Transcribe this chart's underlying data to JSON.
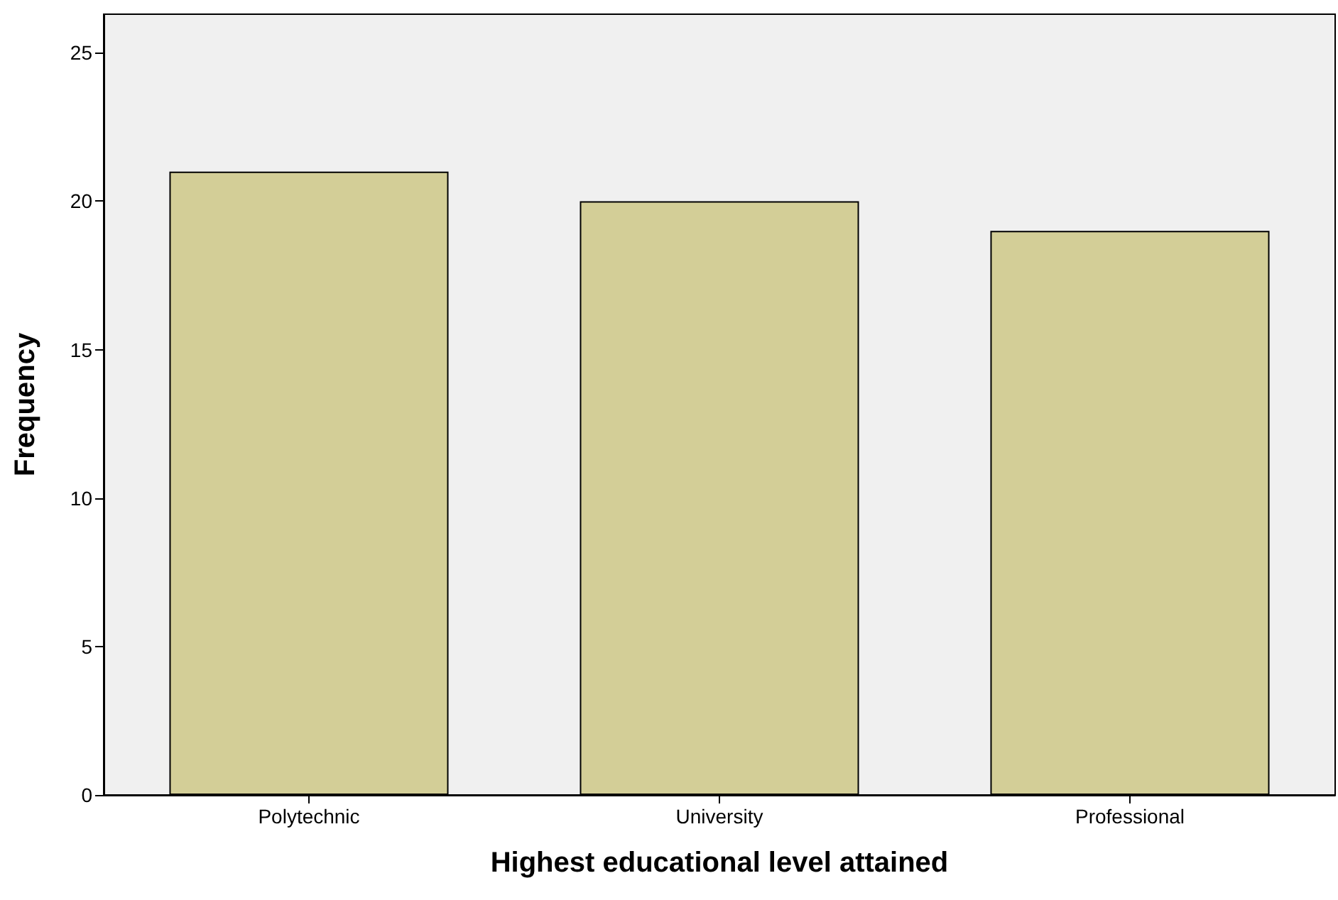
{
  "chart_data": {
    "type": "bar",
    "xlabel": "Highest educational level attained",
    "ylabel": "Frequency",
    "categories": [
      "Polytechnic",
      "University",
      "Professional"
    ],
    "values": [
      21,
      20,
      19
    ],
    "color": "#d3ce97",
    "ylim": [
      0,
      26.3
    ],
    "yticks": [
      0,
      5,
      10,
      15,
      20,
      25
    ],
    "grid": false
  }
}
